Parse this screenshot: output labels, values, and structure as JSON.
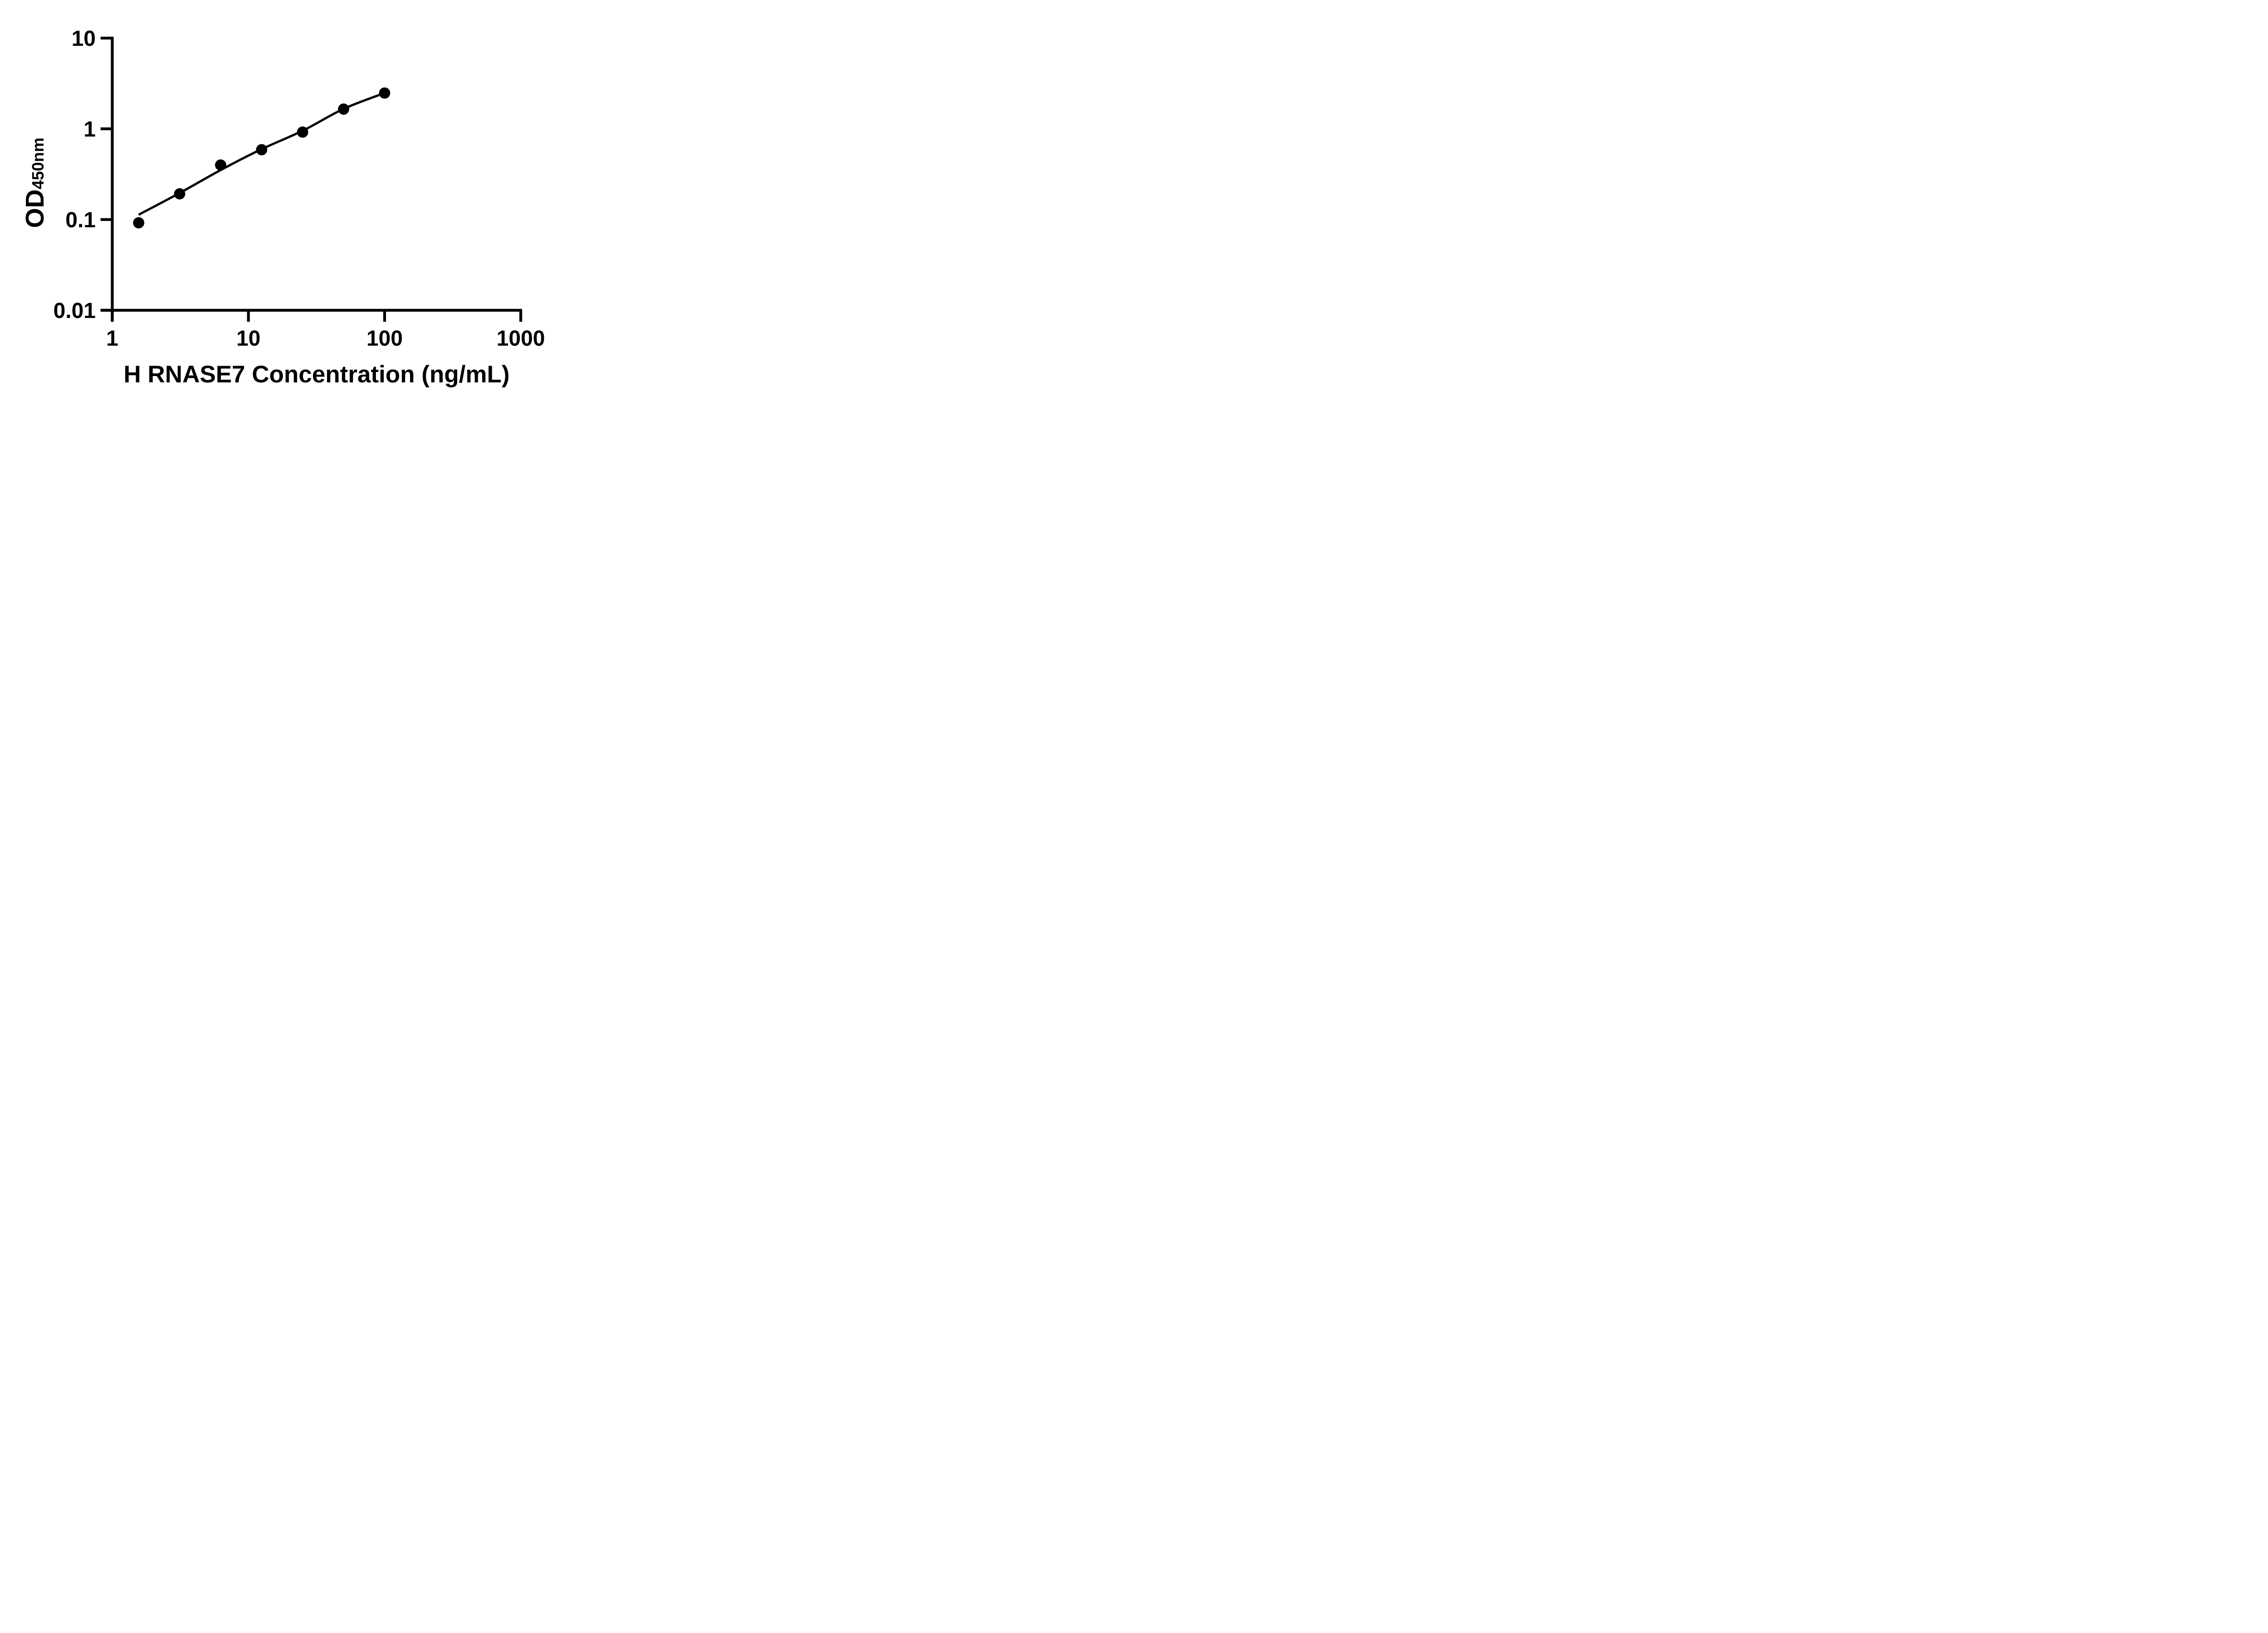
{
  "figure": {
    "background": "#ffffff",
    "foreground": "#000000"
  },
  "chart_data": {
    "type": "scatter",
    "title": "",
    "xlabel": "H RNASE7 Concentration (ng/mL)",
    "ylabel": "OD450nm",
    "ylabel_parts": {
      "base": "OD",
      "subscript": "450nm"
    },
    "x_scale": "log10",
    "y_scale": "log10",
    "xlim": [
      1,
      1000
    ],
    "ylim": [
      0.01,
      10
    ],
    "grid": "off",
    "legend": "none",
    "x_ticks": [
      {
        "value": 1,
        "label": "1"
      },
      {
        "value": 10,
        "label": "10"
      },
      {
        "value": 100,
        "label": "100"
      },
      {
        "value": 1000,
        "label": "1000"
      }
    ],
    "y_ticks": [
      {
        "value": 10,
        "label": "10"
      },
      {
        "value": 1,
        "label": "1"
      },
      {
        "value": 0.1,
        "label": "0.1"
      },
      {
        "value": 0.01,
        "label": "0.01"
      }
    ],
    "series": [
      {
        "name": "standard-points",
        "type": "scatter",
        "marker": "filled-circle",
        "x": [
          1.5625,
          3.125,
          6.25,
          12.5,
          25,
          50,
          100
        ],
        "y": [
          0.092,
          0.192,
          0.399,
          0.589,
          0.92,
          1.65,
          2.48
        ]
      },
      {
        "name": "fit-line",
        "type": "line",
        "x": [
          1.5625,
          3.125,
          6.25,
          12.5,
          25,
          50,
          100
        ],
        "y": [
          0.113,
          0.196,
          0.351,
          0.597,
          0.952,
          1.66,
          2.48
        ]
      }
    ],
    "marker_color": "#000000",
    "line_color": "#000000",
    "axis_color": "#000000"
  }
}
